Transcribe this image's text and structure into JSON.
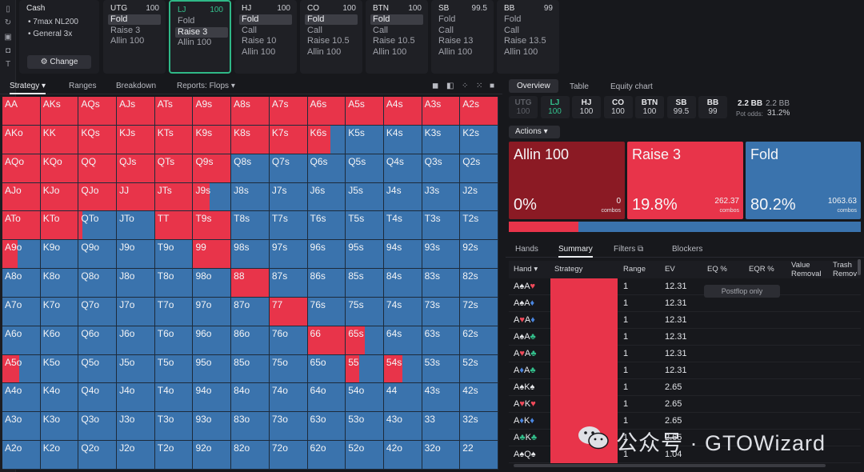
{
  "colors": {
    "raise": "#e8344a",
    "fold": "#3a73ad",
    "allin": "#8b1a24",
    "accent": "#33c08c",
    "bg": "#17181c"
  },
  "sidebar": {
    "icons": [
      "bookmark-icon",
      "refresh-icon",
      "save-icon",
      "gamepad-icon",
      "text-icon"
    ]
  },
  "cash": {
    "title": "Cash",
    "bullet1": "7max NL200",
    "bullet2": "General 3x",
    "change_label": "Change"
  },
  "positions": [
    {
      "name": "UTG",
      "stack": "100",
      "actions": [
        "Fold",
        "Raise 3",
        "Allin 100"
      ],
      "selected": 0,
      "active": false
    },
    {
      "name": "LJ",
      "stack": "100",
      "actions": [
        "Fold",
        "Raise 3",
        "Allin 100"
      ],
      "selected": 1,
      "active": true
    },
    {
      "name": "HJ",
      "stack": "100",
      "actions": [
        "Fold",
        "Call",
        "Raise 10",
        "Allin 100"
      ],
      "selected": 0,
      "active": false
    },
    {
      "name": "CO",
      "stack": "100",
      "actions": [
        "Fold",
        "Call",
        "Raise 10.5",
        "Allin 100"
      ],
      "selected": 0,
      "active": false
    },
    {
      "name": "BTN",
      "stack": "100",
      "actions": [
        "Fold",
        "Call",
        "Raise 10.5",
        "Allin 100"
      ],
      "selected": 0,
      "active": false
    },
    {
      "name": "SB",
      "stack": "99.5",
      "actions": [
        "Fold",
        "Call",
        "Raise 13",
        "Allin 100"
      ],
      "selected": -1,
      "active": false
    },
    {
      "name": "BB",
      "stack": "99",
      "actions": [
        "Fold",
        "Call",
        "Raise 13.5",
        "Allin 100"
      ],
      "selected": -1,
      "active": false
    }
  ],
  "left_tabs": {
    "strategy": "Strategy",
    "ranges": "Ranges",
    "breakdown": "Breakdown",
    "reports": "Reports: Flops"
  },
  "grid": {
    "ranks": [
      "A",
      "K",
      "Q",
      "J",
      "T",
      "9",
      "8",
      "7",
      "6",
      "5",
      "4",
      "3",
      "2"
    ],
    "raise_frac": [
      [
        1,
        1,
        1,
        1,
        1,
        1,
        1,
        1,
        1,
        1,
        1,
        1,
        1
      ],
      [
        1,
        1,
        1,
        1,
        1,
        1,
        1,
        1,
        0.6,
        0,
        0,
        0,
        0
      ],
      [
        1,
        1,
        1,
        1,
        1,
        1,
        0,
        0,
        0,
        0,
        0,
        0,
        0
      ],
      [
        1,
        1,
        1,
        1,
        1,
        0.45,
        0,
        0,
        0,
        0,
        0,
        0,
        0
      ],
      [
        1,
        1,
        0.1,
        0,
        1,
        1,
        0,
        0,
        0,
        0,
        0,
        0,
        0
      ],
      [
        0.4,
        0,
        0,
        0,
        0,
        1,
        0,
        0,
        0,
        0,
        0,
        0,
        0
      ],
      [
        0,
        0,
        0,
        0,
        0,
        0,
        1,
        0,
        0,
        0,
        0,
        0,
        0
      ],
      [
        0,
        0,
        0,
        0,
        0,
        0,
        0,
        1,
        0,
        0,
        0,
        0,
        0
      ],
      [
        0,
        0,
        0,
        0,
        0,
        0,
        0,
        0,
        1,
        0.5,
        0,
        0,
        0
      ],
      [
        0.45,
        0,
        0,
        0,
        0,
        0,
        0,
        0,
        0,
        0.35,
        0.5,
        0,
        0
      ],
      [
        0,
        0,
        0,
        0,
        0,
        0,
        0,
        0,
        0,
        0,
        0,
        0,
        0
      ],
      [
        0,
        0,
        0,
        0,
        0,
        0,
        0,
        0,
        0,
        0,
        0,
        0,
        0
      ],
      [
        0,
        0,
        0,
        0,
        0,
        0,
        0,
        0,
        0,
        0,
        0,
        0,
        0
      ]
    ]
  },
  "right_tabs": {
    "overview": "Overview",
    "table": "Table",
    "equity": "Equity chart"
  },
  "seats": [
    {
      "n": "UTG",
      "s": "100",
      "state": "dim"
    },
    {
      "n": "LJ",
      "s": "100",
      "state": "hl"
    },
    {
      "n": "HJ",
      "s": "100",
      "state": ""
    },
    {
      "n": "CO",
      "s": "100",
      "state": ""
    },
    {
      "n": "BTN",
      "s": "100",
      "state": ""
    },
    {
      "n": "SB",
      "s": "99.5",
      "state": ""
    },
    {
      "n": "BB",
      "s": "99",
      "state": ""
    }
  ],
  "pot": {
    "bb1": "2.2 BB",
    "bb2": "2.2 BB",
    "odds_label": "Pot odds:",
    "odds": "31.2%"
  },
  "actions_label": "Actions",
  "action_boxes": [
    {
      "title": "Allin 100",
      "pct": "0%",
      "combos": "0",
      "combos_label": "combos",
      "color": "#8b1a24"
    },
    {
      "title": "Raise 3",
      "pct": "19.8%",
      "combos": "262.37",
      "combos_label": "combos",
      "color": "#e8344a"
    },
    {
      "title": "Fold",
      "pct": "80.2%",
      "combos": "1063.63",
      "combos_label": "combos",
      "color": "#3a73ad"
    }
  ],
  "strategy_bar": {
    "raise": 0.198,
    "fold": 0.802
  },
  "bottom_tabs": {
    "hands": "Hands",
    "summary": "Summary",
    "filters": "Filters",
    "blockers": "Blockers"
  },
  "table_head": {
    "hand": "Hand",
    "strategy": "Strategy",
    "range": "Range",
    "ev": "EV",
    "eq": "EQ %",
    "eqr": "EQR %",
    "value1": "Value",
    "value2": "Removal",
    "trash1": "Trash",
    "trash2": "Remov"
  },
  "postflop": "Postflop only",
  "rows": [
    {
      "c1": "A",
      "s1": "♠",
      "k1": "cW",
      "c2": "A",
      "s2": "♥",
      "k2": "cR",
      "range": "1",
      "ev": "12.31"
    },
    {
      "c1": "A",
      "s1": "♠",
      "k1": "cW",
      "c2": "A",
      "s2": "♦",
      "k2": "cB",
      "range": "1",
      "ev": "12.31"
    },
    {
      "c1": "A",
      "s1": "♥",
      "k1": "cR",
      "c2": "A",
      "s2": "♦",
      "k2": "cB",
      "range": "1",
      "ev": "12.31"
    },
    {
      "c1": "A",
      "s1": "♠",
      "k1": "cW",
      "c2": "A",
      "s2": "♣",
      "k2": "cG",
      "range": "1",
      "ev": "12.31"
    },
    {
      "c1": "A",
      "s1": "♥",
      "k1": "cR",
      "c2": "A",
      "s2": "♣",
      "k2": "cG",
      "range": "1",
      "ev": "12.31"
    },
    {
      "c1": "A",
      "s1": "♦",
      "k1": "cB",
      "c2": "A",
      "s2": "♣",
      "k2": "cG",
      "range": "1",
      "ev": "12.31"
    },
    {
      "c1": "A",
      "s1": "♠",
      "k1": "cW",
      "c2": "K",
      "s2": "♠",
      "k2": "cW",
      "range": "1",
      "ev": "2.65"
    },
    {
      "c1": "A",
      "s1": "♥",
      "k1": "cR",
      "c2": "K",
      "s2": "♥",
      "k2": "cR",
      "range": "1",
      "ev": "2.65"
    },
    {
      "c1": "A",
      "s1": "♦",
      "k1": "cB",
      "c2": "K",
      "s2": "♦",
      "k2": "cB",
      "range": "1",
      "ev": "2.65"
    },
    {
      "c1": "A",
      "s1": "♣",
      "k1": "cG",
      "c2": "K",
      "s2": "♣",
      "k2": "cG",
      "range": "1",
      "ev": "2.65"
    },
    {
      "c1": "A",
      "s1": "♠",
      "k1": "cW",
      "c2": "Q",
      "s2": "♠",
      "k2": "cW",
      "range": "1",
      "ev": "1.04"
    }
  ],
  "watermark": "公众号 · GTOWizard"
}
